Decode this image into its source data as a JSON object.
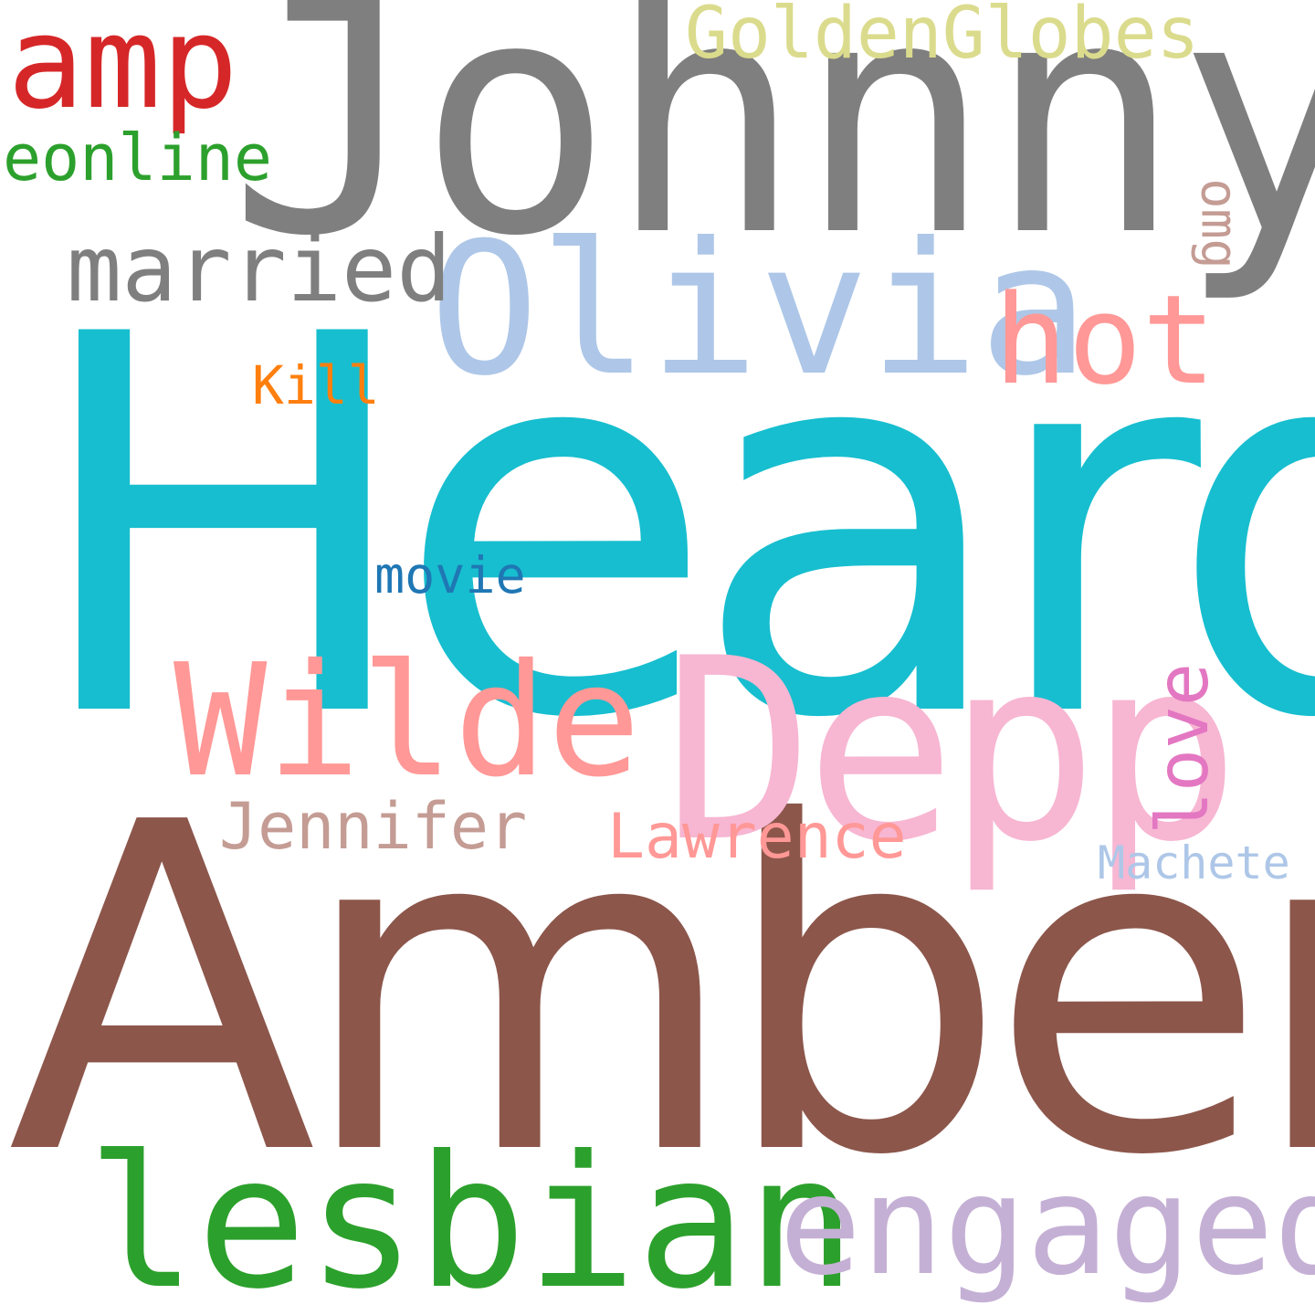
{
  "word_cloud": {
    "background": "#ffffff",
    "words": [
      {
        "key": "heard",
        "text": "Heard",
        "color": "#17becf",
        "orientation": "horizontal"
      },
      {
        "key": "amber",
        "text": "Amber",
        "color": "#8c564b",
        "orientation": "horizontal"
      },
      {
        "key": "johnny",
        "text": "Johnny",
        "color": "#7f7f7f",
        "orientation": "horizontal"
      },
      {
        "key": "depp",
        "text": "Depp",
        "color": "#f7b6d2",
        "orientation": "horizontal"
      },
      {
        "key": "olivia",
        "text": "Olivia",
        "color": "#aec7e8",
        "orientation": "horizontal"
      },
      {
        "key": "wilde",
        "text": "Wilde",
        "color": "#ff9896",
        "orientation": "horizontal"
      },
      {
        "key": "lesbian",
        "text": "lesbian",
        "color": "#2ca02c",
        "orientation": "horizontal"
      },
      {
        "key": "engaged",
        "text": "engaged",
        "color": "#c5b0d5",
        "orientation": "horizontal"
      },
      {
        "key": "amp",
        "text": "amp",
        "color": "#d62728",
        "orientation": "horizontal"
      },
      {
        "key": "hot",
        "text": "hot",
        "color": "#ff9896",
        "orientation": "horizontal"
      },
      {
        "key": "married",
        "text": "married",
        "color": "#7f7f7f",
        "orientation": "horizontal"
      },
      {
        "key": "golden",
        "text": "GoldenGlobes",
        "color": "#dbdb8d",
        "orientation": "horizontal"
      },
      {
        "key": "eonline",
        "text": "eonline",
        "color": "#2ca02c",
        "orientation": "horizontal"
      },
      {
        "key": "jennifer",
        "text": "Jennifer",
        "color": "#c49c94",
        "orientation": "horizontal"
      },
      {
        "key": "lawrence",
        "text": "Lawrence",
        "color": "#ff9896",
        "orientation": "horizontal"
      },
      {
        "key": "movie",
        "text": "movie",
        "color": "#1f77b4",
        "orientation": "horizontal"
      },
      {
        "key": "kill",
        "text": "Kill",
        "color": "#ff7f0e",
        "orientation": "horizontal"
      },
      {
        "key": "machete",
        "text": "Machete",
        "color": "#aec7e8",
        "orientation": "horizontal"
      },
      {
        "key": "love",
        "text": "love",
        "color": "#e377c2",
        "orientation": "vertical-up"
      },
      {
        "key": "omg",
        "text": "omg",
        "color": "#c49c94",
        "orientation": "vertical-down"
      }
    ]
  }
}
